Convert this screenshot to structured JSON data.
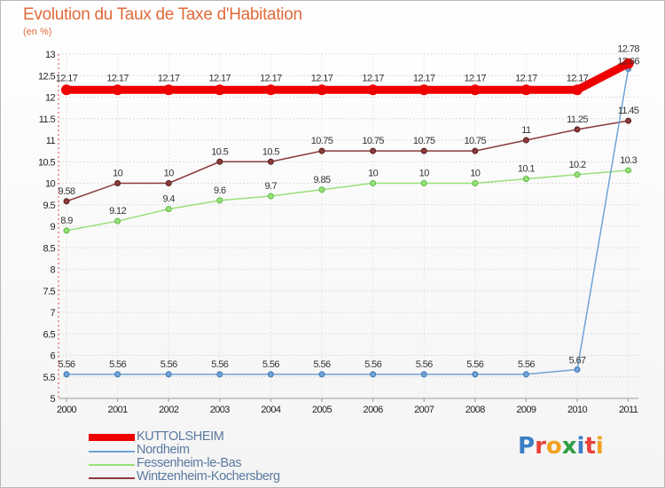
{
  "header": {
    "title": "Evolution du Taux de Taxe d'Habitation",
    "subtitle": "(en %)"
  },
  "chart_data": {
    "type": "line",
    "title": "Evolution du Taux de Taxe d'Habitation",
    "ylabel": "(en %)",
    "xlabel": "",
    "categories": [
      "2000",
      "2001",
      "2002",
      "2003",
      "2004",
      "2005",
      "2006",
      "2007",
      "2008",
      "2009",
      "2010",
      "2011"
    ],
    "ylim": [
      5,
      13
    ],
    "yticks": [
      "5",
      "5.5",
      "6",
      "6.5",
      "7",
      "7.5",
      "8",
      "8.5",
      "9",
      "9.5",
      "10",
      "10.5",
      "11",
      "11.5",
      "12",
      "12.5",
      "13"
    ],
    "grid": true,
    "series": [
      {
        "name": "KUTTOLSHEIM",
        "color": "#ee0000",
        "values": [
          12.17,
          12.17,
          12.17,
          12.17,
          12.17,
          12.17,
          12.17,
          12.17,
          12.17,
          12.17,
          12.17,
          12.78
        ],
        "labels": [
          "12.17",
          "12.17",
          "12.17",
          "12.17",
          "12.17",
          "12.17",
          "12.17",
          "12.17",
          "12.17",
          "12.17",
          "12.17",
          "12.78"
        ]
      },
      {
        "name": "Nordheim",
        "color": "#6fa3d6",
        "values": [
          5.56,
          5.56,
          5.56,
          5.56,
          5.56,
          5.56,
          5.56,
          5.56,
          5.56,
          5.56,
          5.67,
          12.66
        ],
        "labels": [
          "5.56",
          "5.56",
          "5.56",
          "5.56",
          "5.56",
          "5.56",
          "5.56",
          "5.56",
          "5.56",
          "5.56",
          "5.67",
          "12.66"
        ]
      },
      {
        "name": "Fessenheim-le-Bas",
        "color": "#99e07a",
        "values": [
          8.9,
          9.12,
          9.4,
          9.6,
          9.7,
          9.85,
          10,
          10,
          10,
          10.1,
          10.2,
          10.3
        ],
        "labels": [
          "8.9",
          "9.12",
          "9.4",
          "9.6",
          "9.7",
          "9.85",
          "10",
          "10",
          "10",
          "10.1",
          "10.2",
          "10.3"
        ]
      },
      {
        "name": "Wintzenheim-Kochersberg",
        "color": "#8c3b3b",
        "values": [
          9.58,
          10,
          10,
          10.5,
          10.5,
          10.75,
          10.75,
          10.75,
          10.75,
          11,
          11.25,
          11.45
        ],
        "labels": [
          "9.58",
          "10",
          "10",
          "10.5",
          "10.5",
          "10.75",
          "10.75",
          "10.75",
          "10.75",
          "11",
          "11.25",
          "11.45"
        ]
      }
    ],
    "legend": "bottom-left"
  },
  "logo": {
    "text": "Proxiti",
    "colors": [
      "#3a7fc4",
      "#e8413a",
      "#f2a11f",
      "#2f9e43",
      "#3a7fc4",
      "#e8413a",
      "#f2a11f"
    ]
  }
}
